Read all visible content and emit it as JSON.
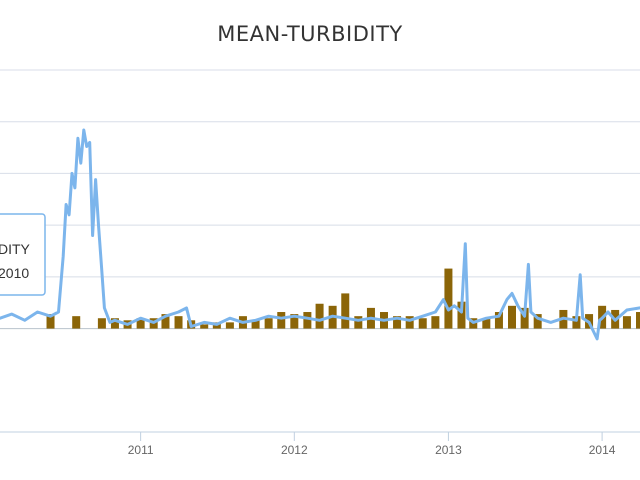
{
  "chart_data": {
    "type": "line",
    "title": "MEAN-TURBIDITY",
    "xlabel": "",
    "ylabel": "",
    "x_ticks": [
      "2011",
      "2012",
      "2013",
      "2014"
    ],
    "xlim": [
      "2010-02-01",
      "2014-04-01"
    ],
    "ylim": [
      -0.5,
      1.25
    ],
    "grid": true,
    "legend": "none",
    "tooltip": {
      "line1": "DITY",
      "line2": "2010"
    },
    "colors": {
      "line": "#7cb5ec",
      "bar": "#8b6508",
      "grid": "#d8dee8",
      "axis": "#c0d0e0"
    },
    "series": [
      {
        "type": "line",
        "points": [
          [
            "2010-02-01",
            0.05
          ],
          [
            "2010-03-01",
            0.07
          ],
          [
            "2010-04-01",
            0.04
          ],
          [
            "2010-05-01",
            0.08
          ],
          [
            "2010-06-01",
            0.06
          ],
          [
            "2010-06-20",
            0.08
          ],
          [
            "2010-07-01",
            0.35
          ],
          [
            "2010-07-08",
            0.6
          ],
          [
            "2010-07-15",
            0.55
          ],
          [
            "2010-07-22",
            0.75
          ],
          [
            "2010-07-29",
            0.68
          ],
          [
            "2010-08-05",
            0.92
          ],
          [
            "2010-08-12",
            0.8
          ],
          [
            "2010-08-19",
            0.96
          ],
          [
            "2010-08-26",
            0.88
          ],
          [
            "2010-09-02",
            0.9
          ],
          [
            "2010-09-09",
            0.45
          ],
          [
            "2010-09-16",
            0.72
          ],
          [
            "2010-09-23",
            0.5
          ],
          [
            "2010-09-30",
            0.3
          ],
          [
            "2010-10-07",
            0.1
          ],
          [
            "2010-10-20",
            0.03
          ],
          [
            "2010-11-01",
            0.04
          ],
          [
            "2010-12-01",
            0.02
          ],
          [
            "2011-01-01",
            0.05
          ],
          [
            "2011-02-01",
            0.03
          ],
          [
            "2011-03-01",
            0.06
          ],
          [
            "2011-04-01",
            0.08
          ],
          [
            "2011-04-20",
            0.1
          ],
          [
            "2011-05-01",
            0.01
          ],
          [
            "2011-06-01",
            0.03
          ],
          [
            "2011-07-01",
            0.02
          ],
          [
            "2011-08-01",
            0.05
          ],
          [
            "2011-09-01",
            0.03
          ],
          [
            "2011-10-01",
            0.04
          ],
          [
            "2011-11-01",
            0.06
          ],
          [
            "2011-12-01",
            0.05
          ],
          [
            "2012-01-01",
            0.06
          ],
          [
            "2012-02-01",
            0.05
          ],
          [
            "2012-03-01",
            0.04
          ],
          [
            "2012-04-01",
            0.06
          ],
          [
            "2012-05-01",
            0.05
          ],
          [
            "2012-06-01",
            0.04
          ],
          [
            "2012-07-01",
            0.05
          ],
          [
            "2012-08-01",
            0.04
          ],
          [
            "2012-09-01",
            0.05
          ],
          [
            "2012-10-01",
            0.04
          ],
          [
            "2012-11-01",
            0.06
          ],
          [
            "2012-12-01",
            0.08
          ],
          [
            "2012-12-20",
            0.14
          ],
          [
            "2013-01-01",
            0.09
          ],
          [
            "2013-01-15",
            0.11
          ],
          [
            "2013-02-01",
            0.08
          ],
          [
            "2013-02-10",
            0.41
          ],
          [
            "2013-02-16",
            0.05
          ],
          [
            "2013-03-01",
            0.03
          ],
          [
            "2013-04-01",
            0.05
          ],
          [
            "2013-05-01",
            0.06
          ],
          [
            "2013-05-20",
            0.14
          ],
          [
            "2013-06-01",
            0.17
          ],
          [
            "2013-06-15",
            0.11
          ],
          [
            "2013-07-01",
            0.06
          ],
          [
            "2013-07-10",
            0.31
          ],
          [
            "2013-07-16",
            0.08
          ],
          [
            "2013-08-01",
            0.05
          ],
          [
            "2013-09-01",
            0.03
          ],
          [
            "2013-10-01",
            0.05
          ],
          [
            "2013-11-01",
            0.04
          ],
          [
            "2013-11-10",
            0.26
          ],
          [
            "2013-11-16",
            0.05
          ],
          [
            "2013-12-01",
            0.03
          ],
          [
            "2013-12-20",
            -0.05
          ],
          [
            "2013-12-26",
            0.04
          ],
          [
            "2014-01-01",
            0.05
          ],
          [
            "2014-01-15",
            0.08
          ],
          [
            "2014-02-01",
            0.04
          ],
          [
            "2014-03-01",
            0.09
          ],
          [
            "2014-04-01",
            0.1
          ]
        ]
      },
      {
        "type": "column",
        "points": [
          [
            "2010-06-01",
            0.07
          ],
          [
            "2010-08-01",
            0.06
          ],
          [
            "2010-10-01",
            0.05
          ],
          [
            "2010-11-01",
            0.05
          ],
          [
            "2010-12-01",
            0.04
          ],
          [
            "2011-01-01",
            0.05
          ],
          [
            "2011-02-01",
            0.05
          ],
          [
            "2011-03-01",
            0.07
          ],
          [
            "2011-04-01",
            0.06
          ],
          [
            "2011-05-01",
            0.04
          ],
          [
            "2011-06-01",
            0.02
          ],
          [
            "2011-07-01",
            0.03
          ],
          [
            "2011-08-01",
            0.03
          ],
          [
            "2011-09-01",
            0.06
          ],
          [
            "2011-10-01",
            0.04
          ],
          [
            "2011-11-01",
            0.05
          ],
          [
            "2011-12-01",
            0.08
          ],
          [
            "2012-01-01",
            0.07
          ],
          [
            "2012-02-01",
            0.08
          ],
          [
            "2012-03-01",
            0.12
          ],
          [
            "2012-04-01",
            0.11
          ],
          [
            "2012-05-01",
            0.17
          ],
          [
            "2012-06-01",
            0.06
          ],
          [
            "2012-07-01",
            0.1
          ],
          [
            "2012-08-01",
            0.08
          ],
          [
            "2012-09-01",
            0.06
          ],
          [
            "2012-10-01",
            0.06
          ],
          [
            "2012-11-01",
            0.05
          ],
          [
            "2012-12-01",
            0.06
          ],
          [
            "2013-01-01",
            0.29
          ],
          [
            "2013-02-01",
            0.13
          ],
          [
            "2013-03-01",
            0.05
          ],
          [
            "2013-04-01",
            0.05
          ],
          [
            "2013-05-01",
            0.08
          ],
          [
            "2013-06-01",
            0.11
          ],
          [
            "2013-07-01",
            0.1
          ],
          [
            "2013-08-01",
            0.07
          ],
          [
            "2013-10-01",
            0.09
          ],
          [
            "2013-11-01",
            0.06
          ],
          [
            "2013-12-01",
            0.07
          ],
          [
            "2014-01-01",
            0.11
          ],
          [
            "2014-02-01",
            0.09
          ],
          [
            "2014-03-01",
            0.06
          ],
          [
            "2014-04-01",
            0.08
          ]
        ]
      }
    ]
  }
}
